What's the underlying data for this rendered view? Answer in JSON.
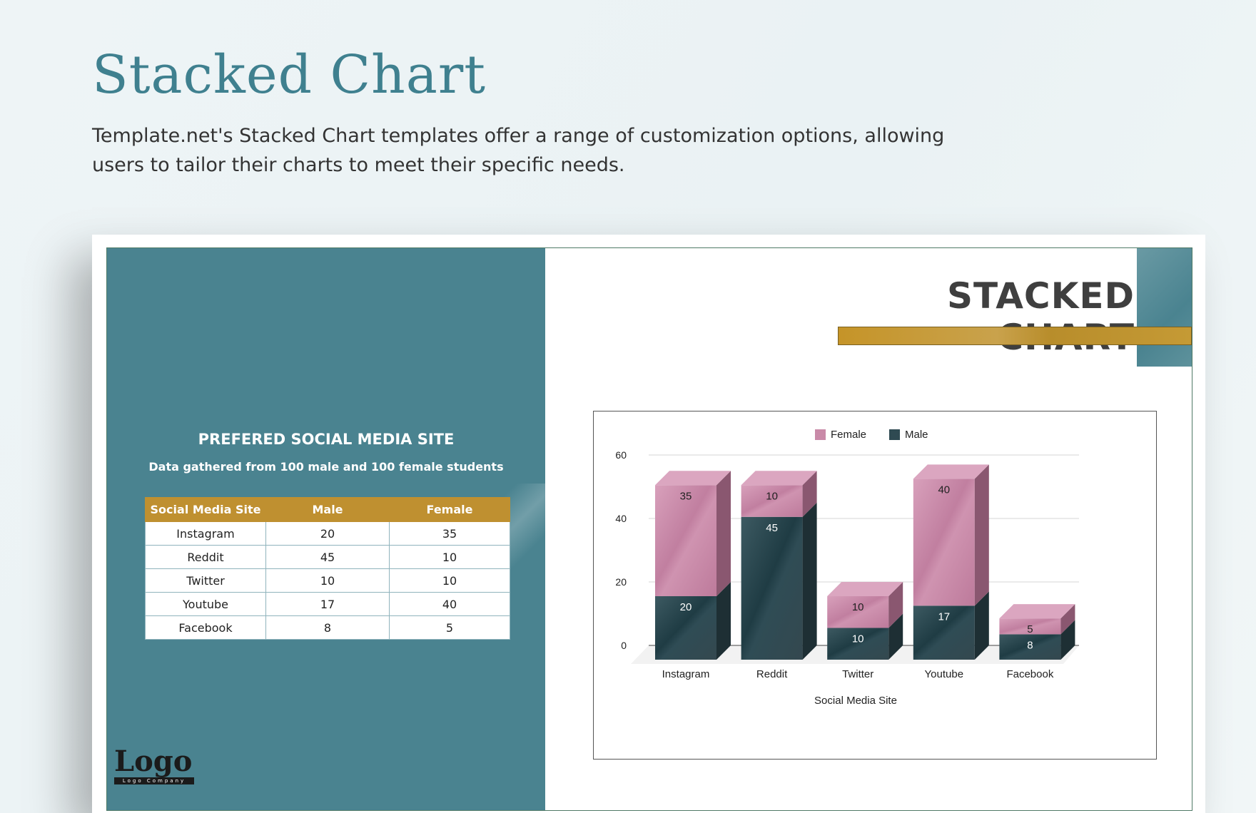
{
  "header": {
    "title": "Stacked Chart",
    "description": "Template.net's Stacked Chart templates offer a range of customization options, allowing users to tailor their charts to meet their specific needs."
  },
  "table": {
    "title": "PREFERED SOCIAL MEDIA SITE",
    "subtitle": "Data gathered from 100 male and 100 female students",
    "columns": [
      "Social Media Site",
      "Male",
      "Female"
    ],
    "rows": [
      [
        "Instagram",
        "20",
        "35"
      ],
      [
        "Reddit",
        "45",
        "10"
      ],
      [
        "Twitter",
        "10",
        "10"
      ],
      [
        "Youtube",
        "17",
        "40"
      ],
      [
        "Facebook",
        "8",
        "5"
      ]
    ]
  },
  "logo": {
    "word": "Logo",
    "tagline": "Logo Company"
  },
  "chart_title": "STACKED CHART",
  "colors": {
    "teal": "#4a8390",
    "gold": "#bf9030",
    "female": "#c98aa8",
    "male": "#2f4a52"
  },
  "chart_data": {
    "type": "bar",
    "stacked": true,
    "categories": [
      "Instagram",
      "Reddit",
      "Twitter",
      "Youtube",
      "Facebook"
    ],
    "series": [
      {
        "name": "Male",
        "values": [
          20,
          45,
          10,
          17,
          8
        ]
      },
      {
        "name": "Female",
        "values": [
          35,
          10,
          10,
          40,
          5
        ]
      }
    ],
    "xlabel": "Social Media Site",
    "ylabel": "",
    "ylim": [
      0,
      60
    ],
    "yticks": [
      0,
      20,
      40,
      60
    ],
    "grid": true,
    "legend": "top-center",
    "legend_entries": [
      "Female",
      "Male"
    ]
  }
}
